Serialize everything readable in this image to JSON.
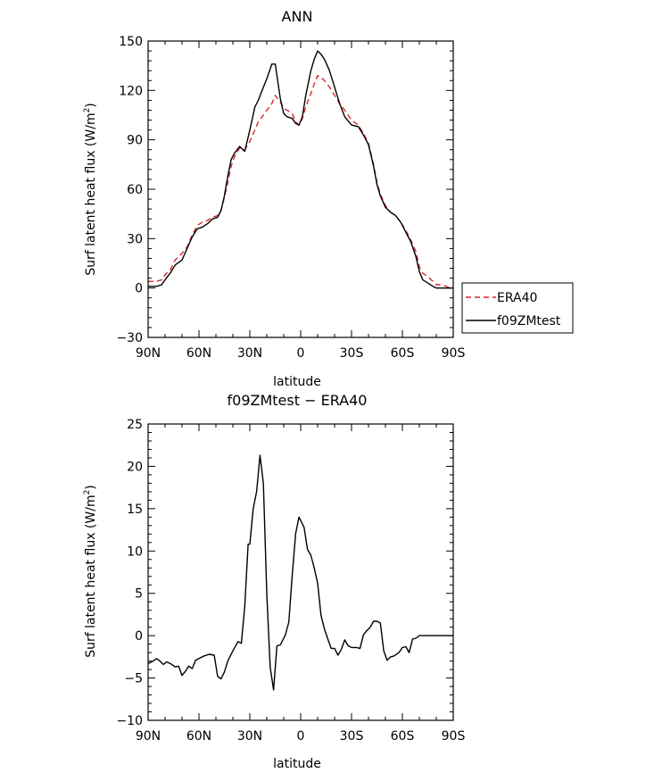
{
  "chart_data": [
    {
      "type": "line",
      "title": "ANN",
      "xlabel": "latitude",
      "ylabel": "Surf latent heat flux (W/m",
      "ylabel_sup": "2",
      "ylabel_close": ")",
      "xlim": [
        -90,
        90
      ],
      "ylim": [
        -30,
        150
      ],
      "xticks": [
        -90,
        -60,
        -30,
        0,
        30,
        60,
        90
      ],
      "xtick_labels": [
        "90N",
        "60N",
        "30N",
        "0",
        "30S",
        "60S",
        "90S"
      ],
      "yticks": [
        -30,
        0,
        30,
        60,
        90,
        120,
        150
      ],
      "ytick_labels": [
        "−30",
        "0",
        "30",
        "60",
        "90",
        "120",
        "150"
      ],
      "grid": false,
      "legend": "right",
      "series": [
        {
          "name": "ERA40",
          "color": "#d62728",
          "dash": "dashed",
          "x": [
            -90,
            -85,
            -82,
            -80,
            -77,
            -74,
            -70,
            -67,
            -64,
            -61,
            -58,
            -55,
            -52,
            -49,
            -47,
            -45,
            -43,
            -41,
            -39,
            -36,
            -33,
            -30,
            -27,
            -25,
            -22,
            -20,
            -17,
            -15,
            -12,
            -10,
            -8,
            -5,
            -3,
            -1,
            1,
            3,
            6,
            8,
            10,
            12,
            14,
            17,
            20,
            23,
            26,
            30,
            34,
            37,
            40,
            43,
            45,
            47,
            50,
            53,
            56,
            59,
            62,
            65,
            68,
            70,
            72,
            75,
            78,
            80,
            83,
            86,
            88,
            90
          ],
          "y": [
            4,
            4,
            5,
            8,
            11,
            17,
            21,
            25,
            32,
            38,
            40,
            41,
            43,
            44,
            47,
            55,
            64,
            74,
            80,
            85,
            84,
            89,
            96,
            101,
            105,
            108,
            112,
            117,
            113,
            109,
            108,
            106,
            101,
            99,
            103,
            110,
            118,
            124,
            129,
            128,
            126,
            122,
            117,
            112,
            108,
            102,
            99,
            94,
            88,
            75,
            64,
            57,
            50,
            46,
            44,
            40,
            35,
            29,
            22,
            13,
            9,
            7,
            4,
            2,
            2,
            1,
            0,
            0
          ]
        },
        {
          "name": "f09ZMtest",
          "color": "#000000",
          "dash": "solid",
          "x": [
            -90,
            -85,
            -82,
            -80,
            -77,
            -74,
            -70,
            -67,
            -64,
            -61,
            -58,
            -55,
            -52,
            -49,
            -47,
            -45,
            -43,
            -41,
            -39,
            -36,
            -33,
            -30,
            -27,
            -25,
            -22,
            -20,
            -17,
            -15,
            -12,
            -10,
            -8,
            -5,
            -3,
            -1,
            1,
            3,
            6,
            8,
            10,
            12,
            14,
            17,
            20,
            23,
            26,
            30,
            34,
            37,
            40,
            43,
            45,
            47,
            50,
            53,
            56,
            59,
            62,
            65,
            68,
            70,
            72,
            75,
            78,
            80,
            83,
            86,
            88,
            90
          ],
          "y": [
            1,
            1,
            2,
            5,
            9,
            14,
            17,
            24,
            31,
            36,
            37,
            39,
            42,
            43,
            47,
            56,
            68,
            78,
            82,
            86,
            83,
            96,
            110,
            114,
            122,
            127,
            136,
            136,
            115,
            106,
            104,
            103,
            100,
            99,
            104,
            117,
            132,
            139,
            144,
            142,
            139,
            132,
            122,
            112,
            104,
            99,
            98,
            93,
            87,
            74,
            63,
            56,
            49,
            46,
            44,
            40,
            34,
            28,
            19,
            10,
            5,
            3,
            1,
            0,
            0,
            0,
            0,
            0
          ]
        }
      ]
    },
    {
      "type": "line",
      "title": "f09ZMtest − ERA40",
      "xlabel": "latitude",
      "ylabel": "Surf latent heat flux (W/m",
      "ylabel_sup": "2",
      "ylabel_close": ")",
      "xlim": [
        -90,
        90
      ],
      "ylim": [
        -10,
        25
      ],
      "xticks": [
        -90,
        -60,
        -30,
        0,
        30,
        60,
        90
      ],
      "xtick_labels": [
        "90N",
        "60N",
        "30N",
        "0",
        "30S",
        "60S",
        "90S"
      ],
      "yticks": [
        -10,
        -5,
        0,
        5,
        10,
        15,
        20,
        25
      ],
      "ytick_labels": [
        "−10",
        "−5",
        "0",
        "5",
        "10",
        "15",
        "20",
        "25"
      ],
      "grid": false,
      "series": [
        {
          "color": "#000000",
          "dash": "solid",
          "x": [
            -90,
            -87,
            -85,
            -83,
            -81,
            -79,
            -76,
            -74,
            -72,
            -70,
            -68,
            -66,
            -64,
            -62,
            -59,
            -57,
            -54,
            -51,
            -49,
            -47,
            -45,
            -43,
            -40,
            -37,
            -35,
            -33,
            -31,
            -30,
            -28,
            -26,
            -24,
            -22,
            -20,
            -18,
            -16,
            -14,
            -12,
            -9,
            -7,
            -5,
            -3,
            -1,
            2,
            4,
            6,
            8,
            10,
            12,
            14,
            16,
            18,
            20,
            22,
            24,
            26,
            28,
            30,
            33,
            35,
            37,
            39,
            41,
            43,
            45,
            47,
            49,
            51,
            53,
            55,
            58,
            60,
            62,
            64,
            66,
            68,
            70,
            72,
            74,
            76,
            78,
            80,
            83,
            85,
            87,
            88,
            90
          ],
          "y": [
            -3.3,
            -3.0,
            -2.7,
            -3.0,
            -3.4,
            -3.1,
            -3.4,
            -3.7,
            -3.6,
            -4.7,
            -4.2,
            -3.6,
            -3.9,
            -2.9,
            -2.6,
            -2.4,
            -2.2,
            -2.3,
            -4.8,
            -5.1,
            -4.3,
            -3.0,
            -1.8,
            -0.7,
            -0.9,
            3.4,
            10.8,
            10.8,
            15.0,
            17.0,
            21.3,
            18.0,
            5.0,
            -3.7,
            -6.4,
            -1.2,
            -1.1,
            0.1,
            1.6,
            7.1,
            12.0,
            14.0,
            12.8,
            10.2,
            9.5,
            8.0,
            6.2,
            2.4,
            0.8,
            -0.4,
            -1.5,
            -1.5,
            -2.3,
            -1.6,
            -0.5,
            -1.2,
            -1.4,
            -1.4,
            -1.5,
            0.1,
            0.6,
            1.0,
            1.7,
            1.7,
            1.5,
            -1.8,
            -2.9,
            -2.5,
            -2.4,
            -2.0,
            -1.4,
            -1.3,
            -2.0,
            -0.4,
            -0.3,
            0,
            0,
            0,
            0,
            0,
            0,
            0,
            0,
            0,
            0,
            0
          ]
        }
      ]
    }
  ]
}
